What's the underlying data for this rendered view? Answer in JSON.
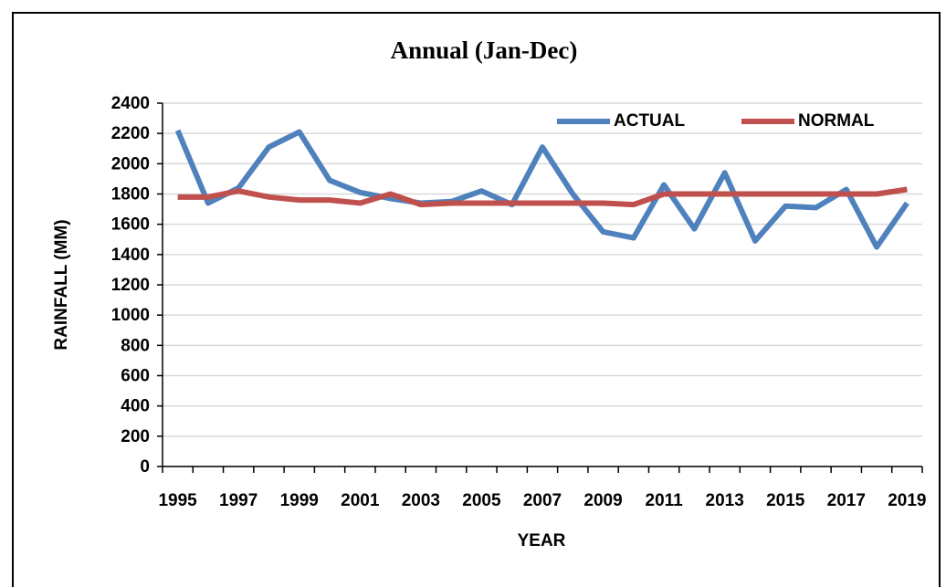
{
  "chart_data": {
    "type": "line",
    "title": "Annual (Jan-Dec)",
    "x_label": "YEAR",
    "y_label": "RAINFALL (MM)",
    "categories": [
      "1995",
      null,
      "1997",
      null,
      "1999",
      null,
      "2001",
      null,
      "2003",
      null,
      "2005",
      null,
      "2007",
      null,
      "2009",
      null,
      "2011",
      null,
      "2013",
      null,
      "2015",
      null,
      "2017",
      null,
      "2019"
    ],
    "series": [
      {
        "name": "ACTUAL",
        "color": "#4f81bd",
        "values": [
          2220,
          1740,
          1840,
          2110,
          2210,
          1890,
          1810,
          1770,
          1740,
          1750,
          1820,
          1730,
          2110,
          1800,
          1550,
          1510,
          1860,
          1570,
          1940,
          1490,
          1720,
          1710,
          1830,
          1450,
          1740
        ]
      },
      {
        "name": "NORMAL",
        "color": "#c0504d",
        "values": [
          1780,
          1780,
          1820,
          1780,
          1760,
          1760,
          1740,
          1800,
          1730,
          1740,
          1740,
          1740,
          1740,
          1740,
          1740,
          1730,
          1800,
          1800,
          1800,
          1800,
          1800,
          1800,
          1800,
          1800,
          1830
        ]
      }
    ],
    "ylim": [
      0,
      2400
    ],
    "yticks": [
      0,
      200,
      400,
      600,
      800,
      1000,
      1200,
      1400,
      1600,
      1800,
      2000,
      2200,
      2400
    ],
    "grid": true,
    "legend": "upper right"
  }
}
